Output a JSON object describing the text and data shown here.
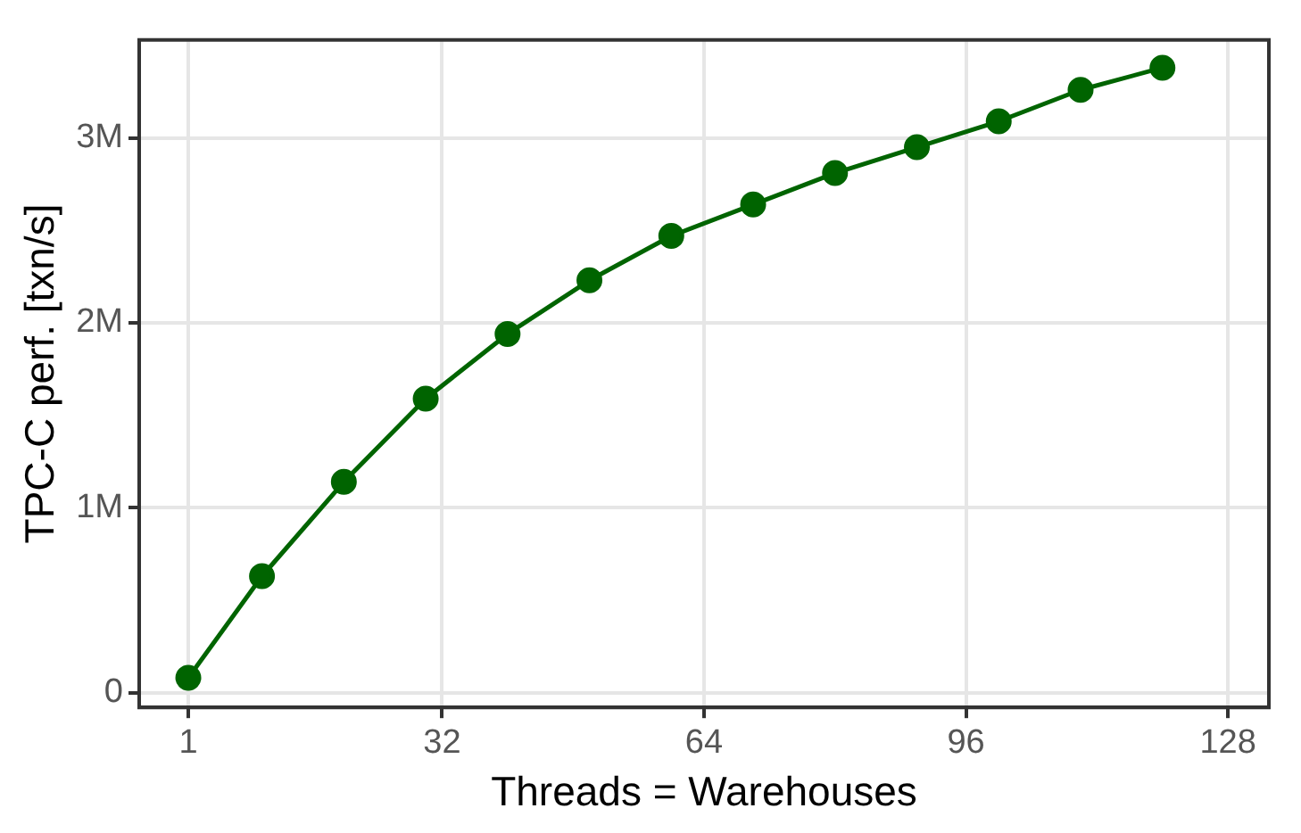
{
  "chart_data": {
    "type": "line",
    "xlabel": "Threads = Warehouses",
    "ylabel": "TPC-C perf. [txn/s]",
    "x": [
      1,
      10,
      20,
      30,
      40,
      50,
      60,
      70,
      80,
      90,
      100,
      110,
      120
    ],
    "series": [
      {
        "color": "#006400",
        "values": [
          80000,
          630000,
          1140000,
          1590000,
          1940000,
          2230000,
          2470000,
          2640000,
          2810000,
          2950000,
          3090000,
          3260000,
          3380000
        ]
      }
    ],
    "xlim": [
      -5,
      133
    ],
    "xticks": [
      1,
      32,
      64,
      96,
      128
    ],
    "ylim": [
      -80000,
      3530000
    ],
    "yticks": [
      {
        "value": 0,
        "label": "0"
      },
      {
        "value": 1000000,
        "label": "1M"
      },
      {
        "value": 2000000,
        "label": "2M"
      },
      {
        "value": 3000000,
        "label": "3M"
      }
    ],
    "grid": true,
    "marker": "circle",
    "line_style": "solid",
    "legend": false
  }
}
